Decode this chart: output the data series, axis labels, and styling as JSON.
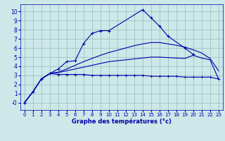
{
  "xlabel": "Graphe des températures (°c)",
  "xlim": [
    -0.5,
    23.5
  ],
  "ylim": [
    -0.8,
    10.8
  ],
  "xticks": [
    0,
    1,
    2,
    3,
    4,
    5,
    6,
    7,
    8,
    9,
    10,
    11,
    12,
    13,
    14,
    15,
    16,
    17,
    18,
    19,
    20,
    21,
    22,
    23
  ],
  "yticks": [
    0,
    1,
    2,
    3,
    4,
    5,
    6,
    7,
    8,
    9,
    10
  ],
  "ytick_labels": [
    "-0",
    "1",
    "2",
    "3",
    "4",
    "5",
    "6",
    "7",
    "8",
    "9",
    "10"
  ],
  "bg_color": "#cce8e8",
  "line_color": "#0000aa",
  "grid_color": "#99bbbb",
  "line1_x": [
    0,
    1,
    2,
    3,
    4,
    5,
    6,
    7,
    8,
    9,
    10,
    14,
    15,
    16,
    17,
    19,
    20
  ],
  "line1_y": [
    0.0,
    1.2,
    2.6,
    3.2,
    3.7,
    4.5,
    4.6,
    6.5,
    7.6,
    7.9,
    7.9,
    10.2,
    9.3,
    8.4,
    7.3,
    6.0,
    5.3
  ],
  "line2_x": [
    0,
    1,
    2,
    3,
    4,
    5,
    6,
    7,
    8,
    9,
    10,
    11,
    12,
    13,
    14,
    15,
    16,
    17,
    18,
    19,
    20,
    21,
    22,
    23
  ],
  "line2_y": [
    0.0,
    1.2,
    2.6,
    3.2,
    3.1,
    3.1,
    3.1,
    3.1,
    3.0,
    3.0,
    3.0,
    3.0,
    3.0,
    3.0,
    3.0,
    2.9,
    2.9,
    2.9,
    2.9,
    2.8,
    2.8,
    2.8,
    2.8,
    2.6
  ],
  "line3_x": [
    0,
    1,
    2,
    3,
    4,
    5,
    6,
    7,
    8,
    9,
    10,
    11,
    12,
    13,
    14,
    15,
    16,
    17,
    18,
    19,
    20,
    21,
    22,
    23
  ],
  "line3_y": [
    0.0,
    1.2,
    2.6,
    3.2,
    3.3,
    3.5,
    3.7,
    3.9,
    4.1,
    4.3,
    4.5,
    4.6,
    4.7,
    4.8,
    4.9,
    5.0,
    5.0,
    4.95,
    4.9,
    4.85,
    5.2,
    4.9,
    4.7,
    2.6
  ],
  "line4_x": [
    0,
    1,
    2,
    3,
    4,
    5,
    6,
    7,
    8,
    9,
    10,
    11,
    12,
    13,
    14,
    15,
    16,
    17,
    18,
    19,
    20,
    21,
    22,
    23
  ],
  "line4_y": [
    0.0,
    1.2,
    2.6,
    3.2,
    3.35,
    3.7,
    4.1,
    4.5,
    4.85,
    5.2,
    5.5,
    5.75,
    6.0,
    6.25,
    6.45,
    6.6,
    6.6,
    6.45,
    6.3,
    6.1,
    5.8,
    5.45,
    4.85,
    3.5
  ]
}
